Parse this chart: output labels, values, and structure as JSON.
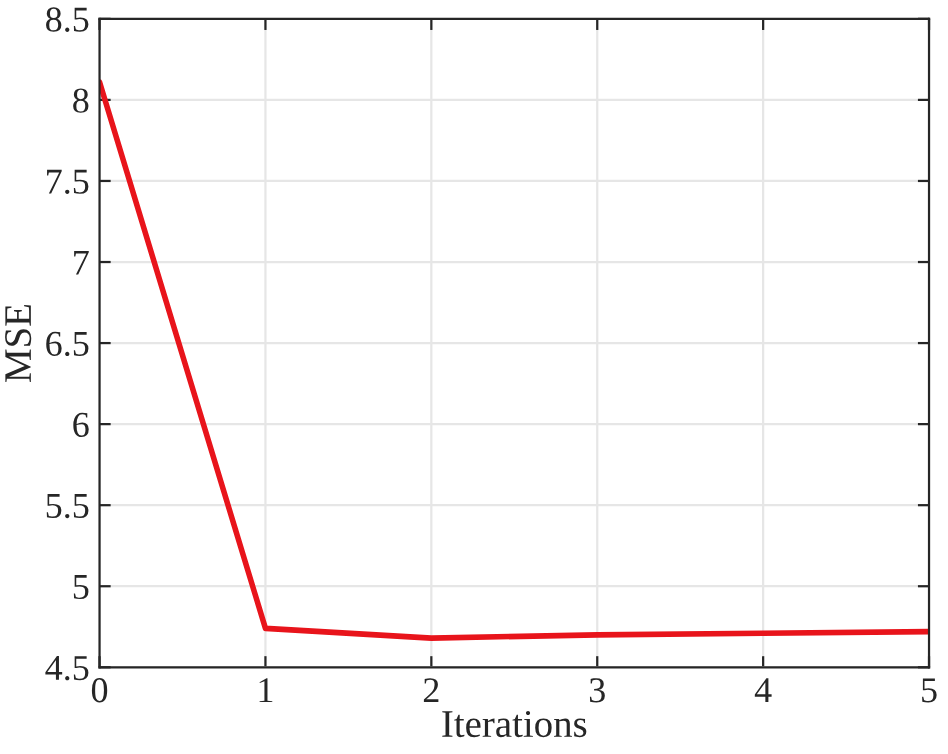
{
  "chart_data": {
    "type": "line",
    "xlabel": "Iterations",
    "ylabel": "MSE",
    "x": [
      0,
      1,
      2,
      3,
      4,
      5
    ],
    "series": [
      {
        "color": "#e8141b",
        "values": [
          8.11,
          4.74,
          4.68,
          4.7,
          4.71,
          4.72
        ]
      }
    ],
    "xlim": [
      0,
      5
    ],
    "xticks": [
      0,
      1,
      2,
      3,
      4,
      5
    ],
    "ylim": [
      4.5,
      8.5
    ],
    "yticks": [
      4.5,
      5,
      5.5,
      6,
      6.5,
      7,
      7.5,
      8,
      8.5
    ],
    "grid": true,
    "line_style": "solid",
    "marker": "none"
  }
}
